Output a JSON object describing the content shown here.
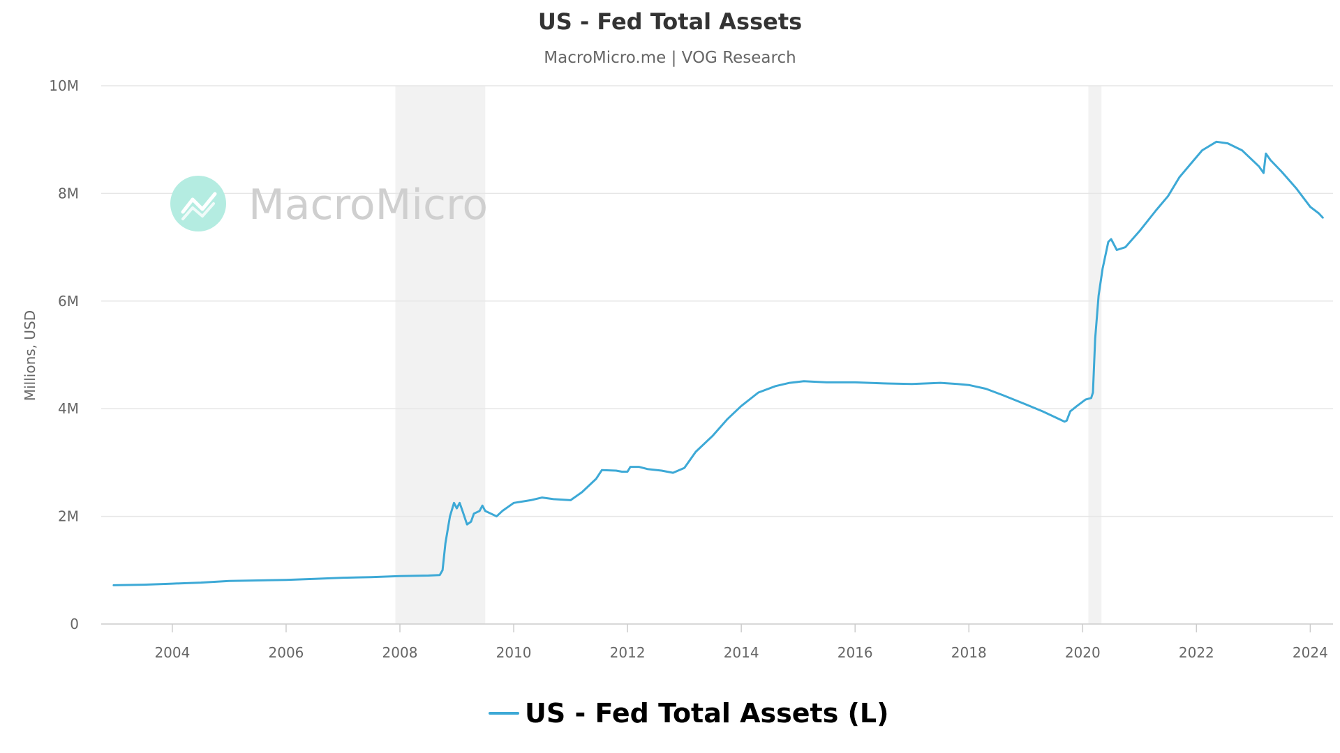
{
  "chart_data": {
    "type": "line",
    "title": "US - Fed Total Assets",
    "subtitle": "MacroMicro.me | VOG Research",
    "watermark": "MacroMicro",
    "ylabel": "Millions, USD",
    "xlabel": "",
    "ylim": [
      0,
      10000000
    ],
    "xlim": [
      2002.75,
      2024.4
    ],
    "grid": true,
    "legend_position": "bottom-center",
    "y_ticks": [
      {
        "value": 0,
        "label": "0"
      },
      {
        "value": 2000000,
        "label": "2M"
      },
      {
        "value": 4000000,
        "label": "4M"
      },
      {
        "value": 6000000,
        "label": "6M"
      },
      {
        "value": 8000000,
        "label": "8M"
      },
      {
        "value": 10000000,
        "label": "10M"
      }
    ],
    "x_ticks": [
      {
        "value": 2004,
        "label": "2004"
      },
      {
        "value": 2006,
        "label": "2006"
      },
      {
        "value": 2008,
        "label": "2008"
      },
      {
        "value": 2010,
        "label": "2010"
      },
      {
        "value": 2012,
        "label": "2012"
      },
      {
        "value": 2014,
        "label": "2014"
      },
      {
        "value": 2016,
        "label": "2016"
      },
      {
        "value": 2018,
        "label": "2018"
      },
      {
        "value": 2020,
        "label": "2020"
      },
      {
        "value": 2022,
        "label": "2022"
      },
      {
        "value": 2024,
        "label": "2024"
      }
    ],
    "recessions": [
      {
        "start": 2007.92,
        "end": 2009.5
      },
      {
        "start": 2020.1,
        "end": 2020.33
      }
    ],
    "colors": {
      "line": "#3da9d6",
      "grid": "#e6e6e6",
      "recession": "#f2f2f2",
      "watermark_logo": "#b4ece1"
    },
    "series": [
      {
        "name": "US - Fed Total Assets (L)",
        "points": [
          [
            2002.97,
            720000
          ],
          [
            2003.5,
            730000
          ],
          [
            2004.0,
            750000
          ],
          [
            2004.5,
            770000
          ],
          [
            2005.0,
            800000
          ],
          [
            2005.5,
            810000
          ],
          [
            2006.0,
            820000
          ],
          [
            2006.5,
            840000
          ],
          [
            2007.0,
            860000
          ],
          [
            2007.5,
            870000
          ],
          [
            2008.0,
            890000
          ],
          [
            2008.5,
            900000
          ],
          [
            2008.7,
            910000
          ],
          [
            2008.75,
            1000000
          ],
          [
            2008.8,
            1500000
          ],
          [
            2008.88,
            2000000
          ],
          [
            2008.95,
            2250000
          ],
          [
            2009.0,
            2150000
          ],
          [
            2009.05,
            2250000
          ],
          [
            2009.1,
            2100000
          ],
          [
            2009.18,
            1850000
          ],
          [
            2009.25,
            1900000
          ],
          [
            2009.3,
            2050000
          ],
          [
            2009.4,
            2100000
          ],
          [
            2009.45,
            2200000
          ],
          [
            2009.5,
            2100000
          ],
          [
            2009.6,
            2050000
          ],
          [
            2009.7,
            2000000
          ],
          [
            2009.8,
            2100000
          ],
          [
            2010.0,
            2250000
          ],
          [
            2010.3,
            2300000
          ],
          [
            2010.5,
            2350000
          ],
          [
            2010.7,
            2320000
          ],
          [
            2011.0,
            2300000
          ],
          [
            2011.2,
            2450000
          ],
          [
            2011.45,
            2700000
          ],
          [
            2011.55,
            2860000
          ],
          [
            2011.8,
            2850000
          ],
          [
            2011.9,
            2830000
          ],
          [
            2012.0,
            2830000
          ],
          [
            2012.05,
            2920000
          ],
          [
            2012.2,
            2920000
          ],
          [
            2012.35,
            2880000
          ],
          [
            2012.6,
            2850000
          ],
          [
            2012.8,
            2810000
          ],
          [
            2013.0,
            2900000
          ],
          [
            2013.2,
            3200000
          ],
          [
            2013.5,
            3500000
          ],
          [
            2013.75,
            3800000
          ],
          [
            2014.0,
            4050000
          ],
          [
            2014.3,
            4300000
          ],
          [
            2014.6,
            4420000
          ],
          [
            2014.85,
            4480000
          ],
          [
            2015.1,
            4510000
          ],
          [
            2015.5,
            4490000
          ],
          [
            2016.0,
            4490000
          ],
          [
            2016.5,
            4470000
          ],
          [
            2017.0,
            4460000
          ],
          [
            2017.5,
            4480000
          ],
          [
            2017.8,
            4460000
          ],
          [
            2018.0,
            4440000
          ],
          [
            2018.3,
            4370000
          ],
          [
            2018.6,
            4250000
          ],
          [
            2019.0,
            4080000
          ],
          [
            2019.3,
            3950000
          ],
          [
            2019.6,
            3800000
          ],
          [
            2019.68,
            3760000
          ],
          [
            2019.72,
            3780000
          ],
          [
            2019.78,
            3950000
          ],
          [
            2019.9,
            4050000
          ],
          [
            2020.05,
            4170000
          ],
          [
            2020.15,
            4200000
          ],
          [
            2020.18,
            4300000
          ],
          [
            2020.22,
            5300000
          ],
          [
            2020.28,
            6100000
          ],
          [
            2020.35,
            6600000
          ],
          [
            2020.45,
            7100000
          ],
          [
            2020.5,
            7150000
          ],
          [
            2020.6,
            6950000
          ],
          [
            2020.75,
            7000000
          ],
          [
            2021.0,
            7300000
          ],
          [
            2021.3,
            7700000
          ],
          [
            2021.5,
            7950000
          ],
          [
            2021.7,
            8300000
          ],
          [
            2021.9,
            8550000
          ],
          [
            2022.1,
            8800000
          ],
          [
            2022.35,
            8960000
          ],
          [
            2022.55,
            8930000
          ],
          [
            2022.8,
            8800000
          ],
          [
            2023.0,
            8600000
          ],
          [
            2023.1,
            8500000
          ],
          [
            2023.18,
            8380000
          ],
          [
            2023.22,
            8740000
          ],
          [
            2023.3,
            8620000
          ],
          [
            2023.5,
            8400000
          ],
          [
            2023.75,
            8100000
          ],
          [
            2024.0,
            7750000
          ],
          [
            2024.15,
            7630000
          ],
          [
            2024.22,
            7550000
          ]
        ]
      }
    ]
  }
}
